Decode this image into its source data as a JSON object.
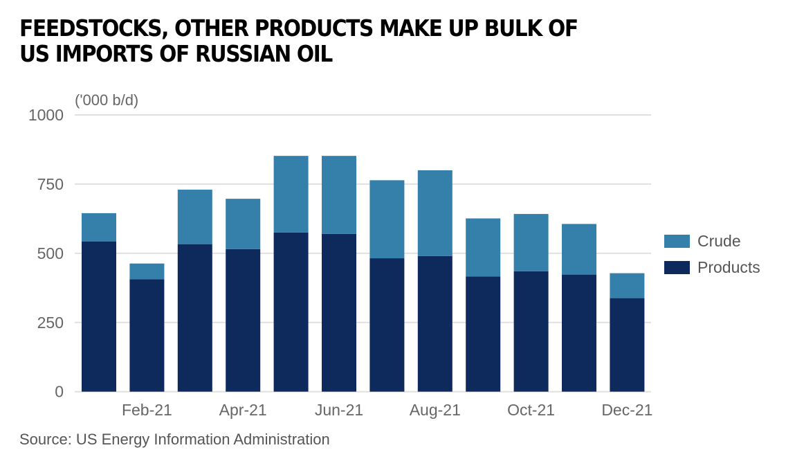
{
  "chart_data": {
    "type": "bar",
    "stacked": true,
    "title": "FEEDSTOCKS, OTHER PRODUCTS MAKE UP BULK OF US IMPORTS OF RUSSIAN OIL",
    "title_lines": [
      "FEEDSTOCKS, OTHER PRODUCTS MAKE UP BULK OF",
      "US IMPORTS OF RUSSIAN OIL"
    ],
    "ylabel": "('000 b/d)",
    "xlabel": "",
    "ylim": [
      0,
      1000
    ],
    "yticks": [
      "0",
      "250",
      "500",
      "750",
      "1000"
    ],
    "categories": [
      "",
      "Feb-21",
      "",
      "Apr-21",
      "",
      "Jun-21",
      "",
      "Aug-21",
      "",
      "Oct-21",
      "",
      "Dec-21"
    ],
    "series": [
      {
        "name": "Products",
        "color": "#0e2a5c",
        "values": [
          543,
          406,
          533,
          515,
          575,
          570,
          482,
          490,
          416,
          435,
          423,
          338
        ]
      },
      {
        "name": "Crude",
        "color": "#357fab",
        "values": [
          102,
          57,
          197,
          182,
          277,
          282,
          282,
          310,
          210,
          207,
          183,
          90
        ]
      }
    ],
    "legend_position": "right",
    "legend_order": [
      "Crude",
      "Products"
    ],
    "grid": true,
    "source": "Source: US Energy Information Administration"
  }
}
